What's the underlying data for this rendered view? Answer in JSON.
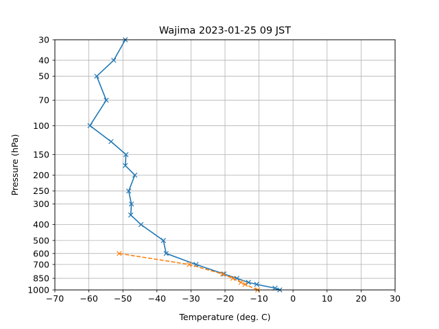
{
  "chart_data": {
    "type": "line",
    "title": "Wajima  2023-01-25 09 JST",
    "xlabel": "Temperature (deg. C)",
    "ylabel": "Pressure (hPa)",
    "xlim": [
      -70,
      30
    ],
    "ylim": [
      1000,
      30
    ],
    "yscale": "log",
    "grid": true,
    "xticks": [
      -70,
      -60,
      -50,
      -40,
      -30,
      -20,
      -10,
      0,
      10,
      20,
      30
    ],
    "xtick_labels": [
      "−70",
      "−60",
      "−50",
      "−40",
      "−30",
      "−20",
      "−10",
      "0",
      "10",
      "20",
      "30"
    ],
    "yticks": [
      30,
      40,
      50,
      70,
      100,
      150,
      200,
      250,
      300,
      400,
      500,
      600,
      700,
      850,
      1000
    ],
    "ytick_labels": [
      "30",
      "40",
      "50",
      "70",
      "100",
      "150",
      "200",
      "250",
      "300",
      "400",
      "500",
      "600",
      "700",
      "850",
      "1000"
    ],
    "series": [
      {
        "color": "#1f77b4",
        "linestyle": "solid",
        "marker": "x",
        "points": [
          [
            -3.9,
            1000
          ],
          [
            -5.3,
            975
          ],
          [
            -10.7,
            925
          ],
          [
            -13.1,
            900
          ],
          [
            -16.5,
            850
          ],
          [
            -20.3,
            800
          ],
          [
            -28.5,
            700
          ],
          [
            -37.3,
            600
          ],
          [
            -38.1,
            500
          ],
          [
            -44.7,
            400
          ],
          [
            -47.7,
            350
          ],
          [
            -47.5,
            300
          ],
          [
            -48.3,
            250
          ],
          [
            -46.5,
            200
          ],
          [
            -49.3,
            175
          ],
          [
            -49.1,
            150
          ],
          [
            -53.5,
            125
          ],
          [
            -59.7,
            100
          ],
          [
            -54.9,
            70
          ],
          [
            -57.7,
            50
          ],
          [
            -52.7,
            40
          ],
          [
            -49.3,
            30
          ]
        ]
      },
      {
        "color": "#ff7f0e",
        "linestyle": "dashed",
        "marker": "x",
        "points": [
          [
            -10.4,
            1000
          ],
          [
            -14.1,
            925
          ],
          [
            -15.3,
            900
          ],
          [
            -17.7,
            850
          ],
          [
            -20.7,
            800
          ],
          [
            -30.5,
            700
          ],
          [
            -51.1,
            600
          ]
        ]
      }
    ]
  }
}
